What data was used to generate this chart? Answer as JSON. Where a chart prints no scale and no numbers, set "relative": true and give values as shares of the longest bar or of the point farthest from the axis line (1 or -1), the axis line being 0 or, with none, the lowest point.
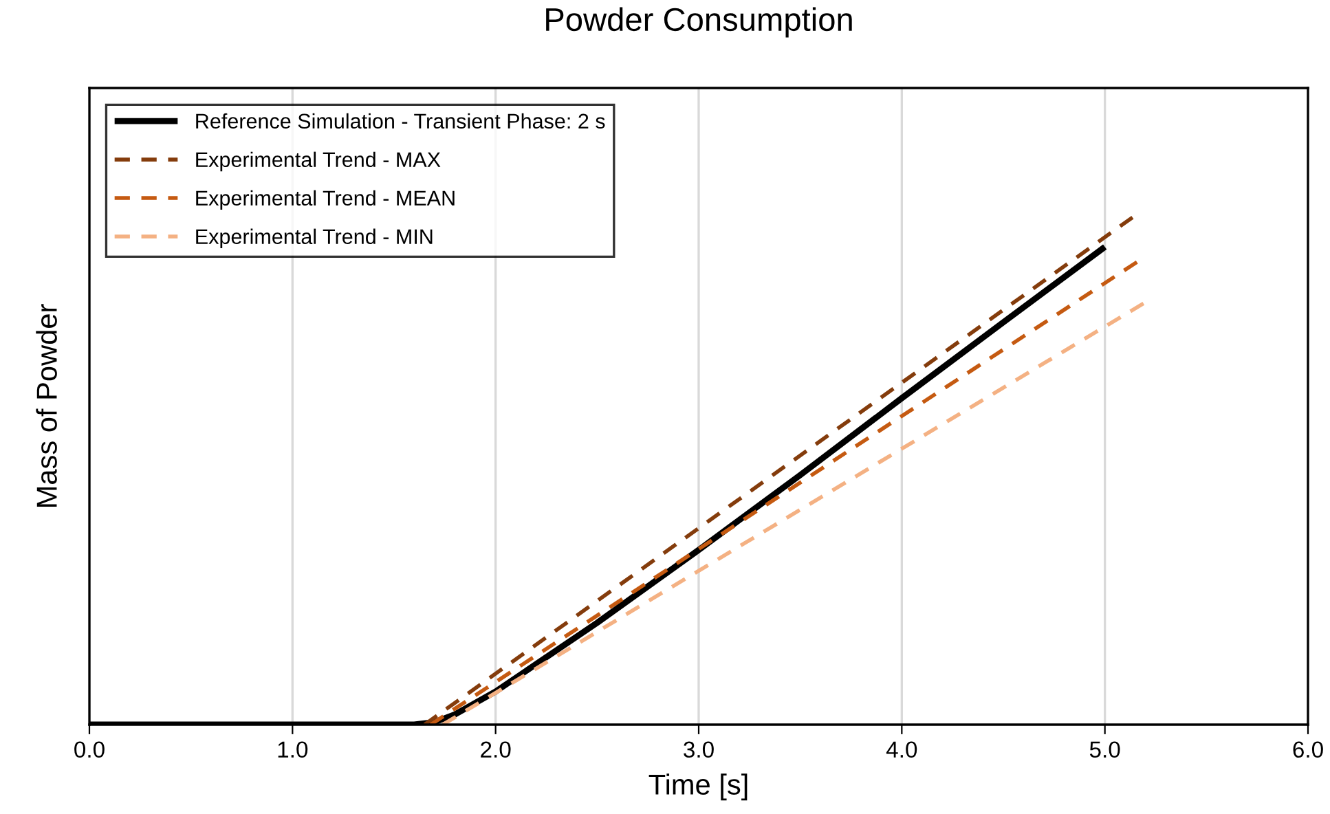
{
  "chart_data": {
    "type": "line",
    "title": "Powder Consumption",
    "xlabel": "Time [s]",
    "ylabel": "Mass of Powder",
    "relative": true,
    "xlim": [
      0,
      6
    ],
    "xticks": [
      {
        "value": 0,
        "label": "0.0"
      },
      {
        "value": 1,
        "label": "1.0"
      },
      {
        "value": 2,
        "label": "2.0"
      },
      {
        "value": 3,
        "label": "3.0"
      },
      {
        "value": 4,
        "label": "4.0"
      },
      {
        "value": 5,
        "label": "5.0"
      },
      {
        "value": 6,
        "label": "6.0"
      }
    ],
    "grid": "x",
    "legend": "top left",
    "marker": "none",
    "series": [
      {
        "name": "Reference Simulation - Transient Phase: 2 s",
        "color": "#000000",
        "line_style": "solid",
        "x": [
          0,
          1.6,
          1.7,
          1.8,
          2.0,
          2.5,
          3.0,
          3.5,
          4.0,
          4.5,
          5.0
        ],
        "values": [
          0,
          0,
          0.005,
          0.02,
          0.065,
          0.2,
          0.343,
          0.49,
          0.641,
          0.79,
          0.938
        ]
      },
      {
        "name": "Experimental Trend - MAX",
        "color": "#843c0c",
        "line_style": "dashed",
        "x": [
          1.65,
          5.15
        ],
        "values": [
          0,
          1
        ]
      },
      {
        "name": "Experimental Trend - MEAN",
        "color": "#c55a11",
        "line_style": "dashed",
        "x": [
          1.68,
          5.18
        ],
        "values": [
          0,
          0.914
        ]
      },
      {
        "name": "Experimental Trend - MIN",
        "color": "#f4b183",
        "line_style": "dashed",
        "x": [
          1.74,
          5.19
        ],
        "values": [
          0,
          0.827
        ]
      }
    ]
  }
}
